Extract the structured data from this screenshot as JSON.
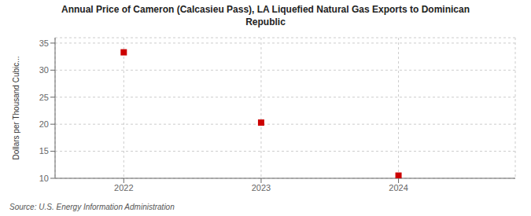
{
  "chart_data": {
    "type": "scatter",
    "title": "Annual Price of Cameron (Calcasieu Pass), LA Liquefied Natural Gas Exports to Dominican\nRepublic",
    "ylabel": "Dollars per Thousand Cubic...",
    "annotations": [
      "Source: U.S. Energy Information Administration"
    ],
    "x": [
      2022,
      2023,
      2024
    ],
    "values": [
      33.3,
      20.3,
      10.5
    ],
    "xlim": [
      2021.5,
      2024.85
    ],
    "ylim": [
      10,
      36
    ],
    "xticks": [
      2022,
      2023,
      2024
    ],
    "yticks": [
      10,
      15,
      20,
      25,
      30,
      35
    ],
    "color": "#cc0000",
    "marker": "square",
    "grid": true
  }
}
